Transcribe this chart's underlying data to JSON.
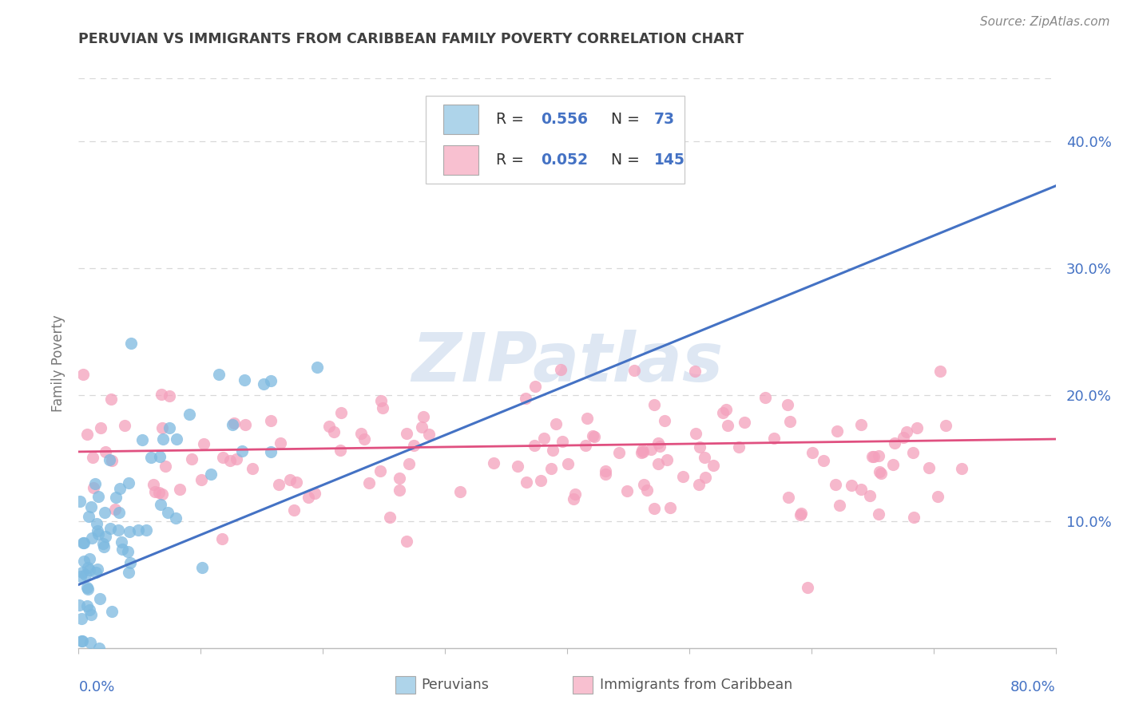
{
  "title": "PERUVIAN VS IMMIGRANTS FROM CARIBBEAN FAMILY POVERTY CORRELATION CHART",
  "source": "Source: ZipAtlas.com",
  "ylabel": "Family Poverty",
  "yticks": [
    0.1,
    0.2,
    0.3,
    0.4
  ],
  "ytick_labels": [
    "10.0%",
    "20.0%",
    "30.0%",
    "40.0%"
  ],
  "xlim": [
    0.0,
    0.8
  ],
  "ylim": [
    0.0,
    0.45
  ],
  "peruvians_R": 0.556,
  "peruvians_N": 73,
  "caribbean_R": 0.052,
  "caribbean_N": 145,
  "blue_scatter": "#7cb9e0",
  "pink_scatter": "#f4a0bc",
  "blue_line": "#4472c4",
  "pink_line": "#e05080",
  "blue_legend_face": "#aed4ea",
  "pink_legend_face": "#f8c0d0",
  "value_color": "#4472c4",
  "label_color": "#333333",
  "title_color": "#404040",
  "source_color": "#888888",
  "grid_color": "#d8d8d8",
  "axis_tick_color": "#4472c4",
  "spine_color": "#bbbbbb",
  "watermark_color": "#c8d8ec",
  "background": "#ffffff",
  "scatter_size": 120,
  "scatter_alpha": 0.75
}
